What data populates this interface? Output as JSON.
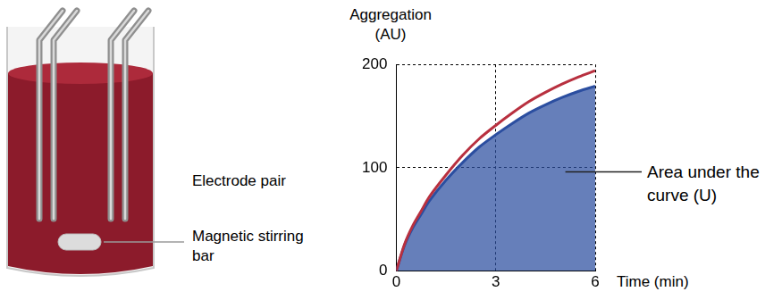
{
  "chart_data": {
    "type": "line",
    "x": [
      0,
      0.25,
      0.5,
      0.75,
      1,
      1.5,
      2,
      2.5,
      3,
      3.5,
      4,
      4.5,
      5,
      5.5,
      6
    ],
    "series": [
      {
        "type": "line",
        "color": "#b8303f",
        "values": [
          0,
          26,
          44,
          58,
          72,
          93,
          112,
          128,
          141,
          153,
          164,
          173,
          181,
          188,
          194
        ]
      },
      {
        "type": "area",
        "color": "#2b4ea0",
        "values": [
          0,
          25,
          42,
          55,
          68,
          88,
          105,
          120,
          132,
          143,
          153,
          161,
          168,
          174,
          179
        ]
      }
    ],
    "x_label": "Time (min)",
    "y_label": "Aggregation (AU)",
    "xlim": [
      0,
      6
    ],
    "xticks": [
      0,
      3,
      6
    ],
    "ylim": [
      0,
      200
    ],
    "yticks": [
      0,
      100,
      200
    ],
    "grid": true,
    "annotations": [
      "Area under the curve (U)"
    ]
  },
  "diagram": {
    "labels": [
      "Electrode pair",
      "Magnetic stirring bar"
    ]
  }
}
